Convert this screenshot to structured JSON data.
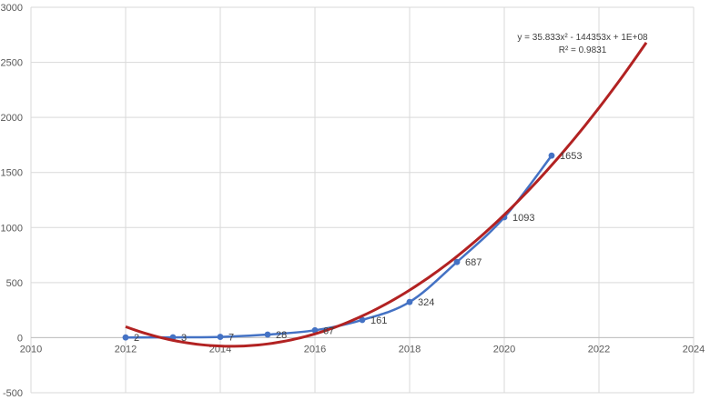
{
  "chart_data": {
    "type": "scatter",
    "title": "",
    "xlabel": "",
    "ylabel": "",
    "xlim": [
      2010,
      2024
    ],
    "ylim": [
      -500,
      3000
    ],
    "x_ticks": [
      2010,
      2012,
      2014,
      2016,
      2018,
      2020,
      2022,
      2024
    ],
    "y_ticks": [
      -500,
      0,
      500,
      1000,
      1500,
      2000,
      2500,
      3000
    ],
    "grid": true,
    "legend": "none",
    "series": [
      {
        "x": [
          2012,
          2013,
          2014,
          2015,
          2016,
          2017,
          2018,
          2019,
          2020,
          2021
        ],
        "values": [
          2,
          3,
          7,
          28,
          67,
          161,
          324,
          687,
          1093,
          1653
        ],
        "labels": [
          "2",
          "3",
          "7",
          "28",
          "67",
          "161",
          "324",
          "687",
          "1093",
          "1653"
        ],
        "color": "#4472c4",
        "style": "smoothed-line-markers"
      }
    ],
    "trendline": {
      "type": "polynomial-2",
      "color": "#b22222",
      "x_range": [
        2012,
        2023
      ],
      "equation": "y = 35.833x² - 144353x + 1E+08",
      "r_squared": "R² = 0.9831"
    }
  }
}
